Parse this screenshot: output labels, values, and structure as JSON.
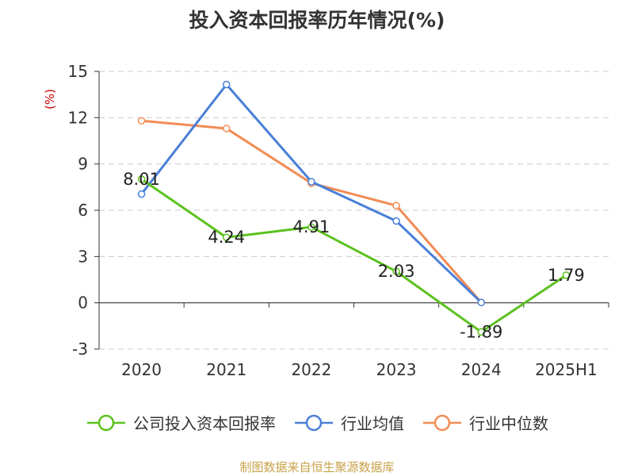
{
  "chart_data": {
    "type": "line",
    "title": "投入资本回报率历年情况(%)",
    "ylabel": "(%)",
    "categories": [
      "2020",
      "2021",
      "2022",
      "2023",
      "2024",
      "2025H1"
    ],
    "yticks": [
      "15",
      "12",
      "9",
      "6",
      "3",
      "0",
      "-3"
    ],
    "ylim": [
      -3,
      15
    ],
    "grid": true,
    "legend_position": "bottom",
    "series": [
      {
        "name": "公司投入资本回报率",
        "color": "#5cc11e",
        "values": [
          8.01,
          4.24,
          4.91,
          2.03,
          -1.89,
          1.79
        ],
        "labels": [
          "8.01",
          "4.24",
          "4.91",
          "2.03",
          "-1.89",
          "1.79"
        ]
      },
      {
        "name": "行业均值",
        "color": "#4a7fd8",
        "values": [
          7.05,
          14.15,
          7.85,
          5.3,
          0.02,
          null
        ]
      },
      {
        "name": "行业中位数",
        "color": "#f28c55",
        "values": [
          11.8,
          11.3,
          7.75,
          6.3,
          0.02,
          null
        ]
      }
    ]
  },
  "source": "制图数据来自恒生聚源数据库"
}
